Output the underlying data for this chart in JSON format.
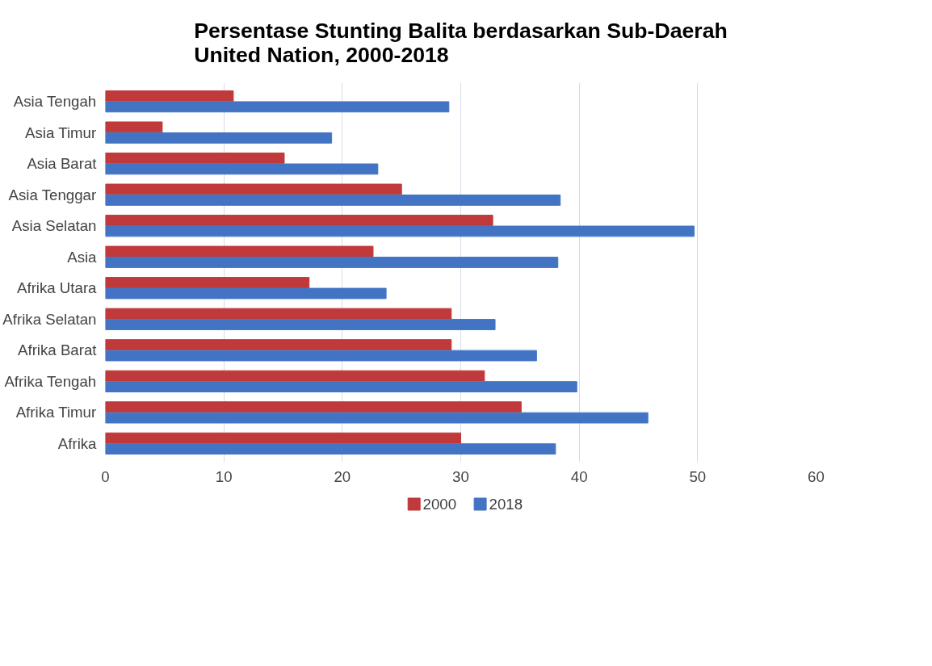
{
  "chart_data": {
    "type": "bar",
    "orientation": "horizontal",
    "title": "Persentase Stunting Balita berdasarkan Sub-Daerah\nUnited Nation, 2000-2018",
    "categories": [
      "Asia Tengah",
      "Asia Timur",
      "Asia Barat",
      "Asia Tenggar",
      "Asia Selatan",
      "Asia",
      "Afrika Utara",
      "Afrika Selatan",
      "Afrika Barat",
      "Afrika Tengah",
      "Afrika Timur",
      "Afrika"
    ],
    "series": [
      {
        "name": "2000",
        "color": "#c0393b",
        "values": [
          10.8,
          4.8,
          15.1,
          25.0,
          32.7,
          22.6,
          17.2,
          29.2,
          29.2,
          32.0,
          35.1,
          30.0
        ]
      },
      {
        "name": "2018",
        "color": "#4374c4",
        "values": [
          29.0,
          19.1,
          23.0,
          38.4,
          49.7,
          38.2,
          23.7,
          32.9,
          36.4,
          39.8,
          45.8,
          38.0
        ]
      }
    ],
    "xlim": [
      0,
      60
    ],
    "xticks": [
      0,
      10,
      20,
      30,
      40,
      50,
      60
    ],
    "grid": "x",
    "legend": "bottom"
  }
}
